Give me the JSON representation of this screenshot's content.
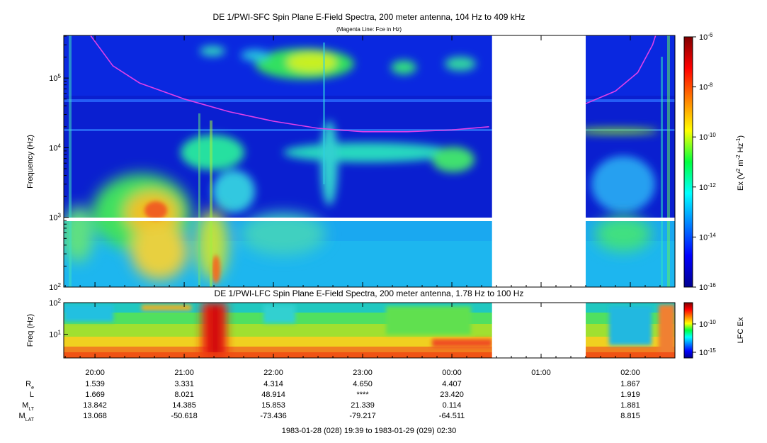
{
  "chart_data": [
    {
      "type": "heatmap",
      "title": "DE 1/PWI-SFC  Spin Plane E-Field Spectra, 200 meter antenna, 104 Hz to 409 kHz",
      "subtitle": "(Magenta Line: Fce in Hz)",
      "ylabel": "Frequency (Hz)",
      "yscale": "log",
      "ylim": [
        100,
        409000
      ],
      "yticks": [
        {
          "value": 100,
          "base": "10",
          "exp": "2"
        },
        {
          "value": 1000,
          "base": "10",
          "exp": "3"
        },
        {
          "value": 10000,
          "base": "10",
          "exp": "4"
        },
        {
          "value": 100000,
          "base": "10",
          "exp": "5"
        }
      ],
      "colorbar": {
        "label_parts": [
          "Ex (V",
          "2",
          " m",
          "-2",
          " Hz",
          "-1",
          ")"
        ],
        "scale": "log",
        "range": [
          1e-16,
          1e-06
        ],
        "ticks": [
          {
            "value": 1e-06,
            "base": "10",
            "exp": "-6"
          },
          {
            "value": 1e-08,
            "base": "10",
            "exp": "-8"
          },
          {
            "value": 1e-10,
            "base": "10",
            "exp": "-10"
          },
          {
            "value": 1e-12,
            "base": "10",
            "exp": "-12"
          },
          {
            "value": 1e-14,
            "base": "10",
            "exp": "-14"
          },
          {
            "value": 1e-16,
            "base": "10",
            "exp": "-16"
          }
        ]
      },
      "data_gaps_utc": [
        [
          "00:27",
          "01:30"
        ]
      ],
      "fce_line": {
        "color": "#e040e8",
        "points": [
          {
            "t": "19:57",
            "f": 409000
          },
          {
            "t": "20:12",
            "f": 150000
          },
          {
            "t": "20:30",
            "f": 85000
          },
          {
            "t": "21:00",
            "f": 50000
          },
          {
            "t": "21:30",
            "f": 33000
          },
          {
            "t": "22:00",
            "f": 24000
          },
          {
            "t": "22:30",
            "f": 19000
          },
          {
            "t": "23:00",
            "f": 17000
          },
          {
            "t": "23:30",
            "f": 17000
          },
          {
            "t": "00:00",
            "f": 18000
          },
          {
            "t": "00:25",
            "f": 20000
          },
          {
            "t": "01:30",
            "f": 43000
          },
          {
            "t": "01:50",
            "f": 65000
          },
          {
            "t": "02:05",
            "f": 120000
          },
          {
            "t": "02:15",
            "f": 300000
          },
          {
            "t": "02:17",
            "f": 409000
          }
        ]
      }
    },
    {
      "type": "heatmap",
      "title": "DE 1/PWI-LFC  Spin Plane E-Field Spectra, 200 meter antenna, 1.78 Hz to 100 Hz",
      "ylabel": "Freq (Hz)",
      "yscale": "log",
      "ylim": [
        1.78,
        100
      ],
      "yticks": [
        {
          "value": 10,
          "base": "10",
          "exp": "1"
        },
        {
          "value": 100,
          "base": "10",
          "exp": "2"
        }
      ],
      "colorbar": {
        "label": "LFC Ex",
        "scale": "log",
        "ticks": [
          {
            "value": 1e-10,
            "base": "10",
            "exp": "-10"
          },
          {
            "value": 1e-15,
            "base": "10",
            "exp": "-15"
          }
        ]
      },
      "data_gaps_utc": [
        [
          "00:27",
          "01:30"
        ]
      ]
    }
  ],
  "time_axis": {
    "start": "19:39",
    "end": "02:30",
    "ticks": [
      "20:00",
      "21:00",
      "22:00",
      "23:00",
      "00:00",
      "01:00",
      "02:00"
    ]
  },
  "ephemeris": {
    "rows": [
      {
        "label": "R",
        "sub": "e",
        "values": [
          "1.539",
          "3.331",
          "4.314",
          "4.650",
          "4.407",
          "",
          "1.867"
        ]
      },
      {
        "label": "L",
        "sub": "",
        "values": [
          "1.669",
          "8.021",
          "48.914",
          "****",
          "23.420",
          "",
          "1.919"
        ]
      },
      {
        "label": "M",
        "sub": "LT",
        "values": [
          "13.842",
          "14.385",
          "15.853",
          "21.339",
          "0.114",
          "",
          "1.881"
        ]
      },
      {
        "label": "M",
        "sub": "LAT",
        "values": [
          "13.068",
          "-50.618",
          "-73.436",
          "-79.217",
          "-64.511",
          "",
          "8.815"
        ]
      }
    ]
  },
  "footer": "1983-01-28 (028) 19:39 to 1983-01-29 (029) 02:30"
}
